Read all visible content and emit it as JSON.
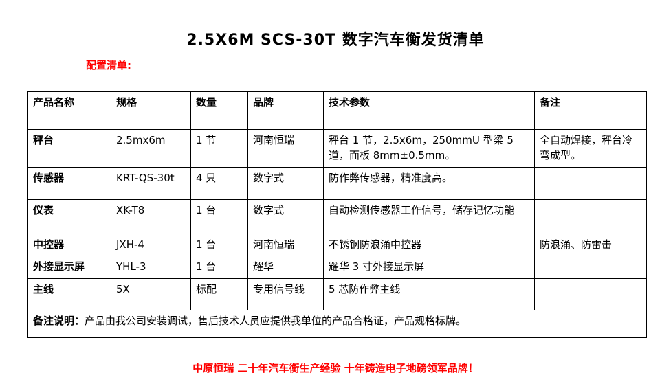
{
  "page": {
    "title": "2.5X6M SCS-30T 数字汽车衡发货清单",
    "subtitle": "配置清单:",
    "footer_slogan": "中原恒瑞 二十年汽车衡生产经验 十年铸造电子地磅领军品牌！"
  },
  "colors": {
    "accent_red": "#ff0000",
    "text_black": "#000000",
    "table_border": "#000000"
  },
  "table": {
    "headers": {
      "name": "产品名称",
      "spec": "规格",
      "qty": "数量",
      "brand": "品牌",
      "params": "技术参数",
      "note": "备注"
    },
    "rows": [
      {
        "name": "秤台",
        "spec": "2.5mx6m",
        "qty": "1 节",
        "brand": "河南恒瑞",
        "params": "秤台 1 节，2.5x6m，250mmU 型梁 5 道，面板 8mm±0.5mm。",
        "note": "全自动焊接，秤台冷弯成型。"
      },
      {
        "name": "传感器",
        "spec": "KRT-QS-30t",
        "qty": "4 只",
        "brand": "数字式",
        "params": "防作弊传感器，精准度高。",
        "note": ""
      },
      {
        "name": "仪表",
        "spec": "XK-T8",
        "qty": "1 台",
        "brand": "数字式",
        "params": "自动检测传感器工作信号，储存记忆功能",
        "note": ""
      },
      {
        "name": "中控器",
        "spec": "JXH-4",
        "qty": "1 台",
        "brand": "河南恒瑞",
        "params": "不锈钢防浪涌中控器",
        "note": "防浪涌、防雷击"
      },
      {
        "name": "外接显示屏",
        "spec": "YHL-3",
        "qty": "1 台",
        "brand": "耀华",
        "params": "耀华 3 寸外接显示屏",
        "note": ""
      },
      {
        "name": "主线",
        "spec": "5X",
        "qty": "标配",
        "brand": "专用信号线",
        "params": "5 芯防作弊主线",
        "note": ""
      }
    ],
    "remark": {
      "label": "备注说明：",
      "text": "产品由我公司安装调试，售后技术人员应提供我单位的产品合格证，产品规格标牌。"
    }
  }
}
